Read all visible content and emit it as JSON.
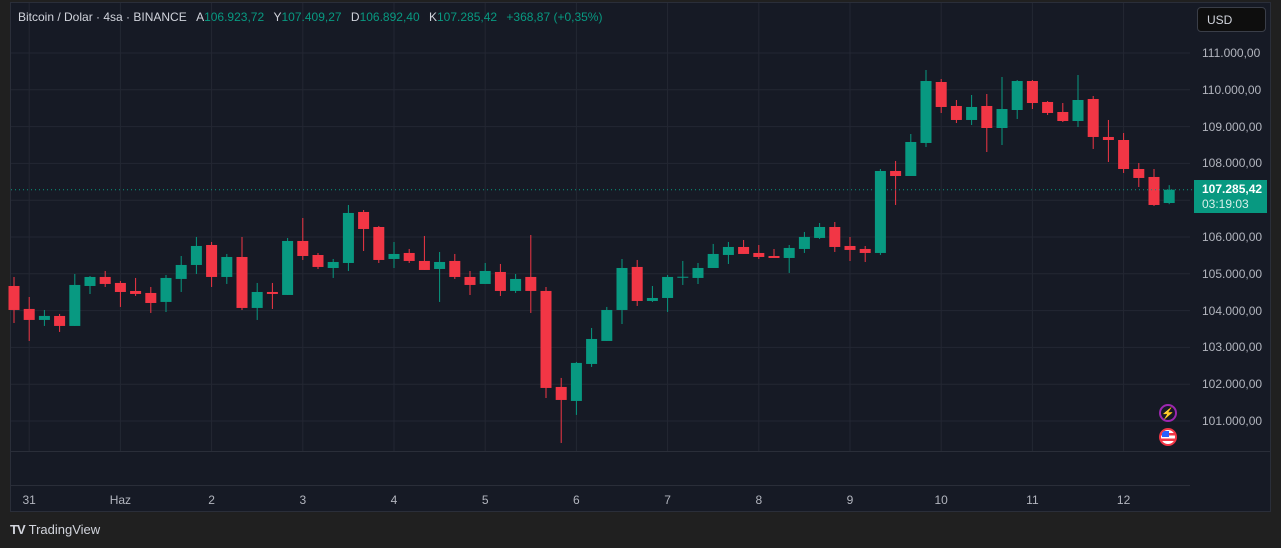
{
  "header": {
    "symbol": "Bitcoin / Dolar · 4sa · BINANCE",
    "open_label": "A",
    "open": "106.923,72",
    "high_label": "Y",
    "high": "107.409,27",
    "low_label": "D",
    "low": "106.892,40",
    "close_label": "K",
    "close": "107.285,42",
    "change": "+368,87 (+0,35%)"
  },
  "currency_button": "USD",
  "current_price": {
    "value": "107.285,42",
    "countdown": "03:19:03"
  },
  "icons": {
    "events": "lightning-icon",
    "economic": "us-flag-icon"
  },
  "branding": {
    "logo_mark": "17",
    "name": "TradingView"
  },
  "colors": {
    "up": "#089981",
    "down": "#f23645",
    "background": "#161a25",
    "grid": "#232733"
  },
  "chart_data": {
    "type": "candlestick",
    "title": "Bitcoin / Dolar · 4sa · BINANCE",
    "ylim": [
      100300,
      111400
    ],
    "yticks": [
      111000,
      110000,
      109000,
      108000,
      106000,
      105000,
      104000,
      103000,
      102000,
      101000
    ],
    "ytick_labels": [
      "111.000,00",
      "110.000,00",
      "109.000,00",
      "108.000,00",
      "106.000,00",
      "105.000,00",
      "104.000,00",
      "103.000,00",
      "102.000,00",
      "101.000,00"
    ],
    "xtick_labels": [
      "31",
      "Haz",
      "2",
      "3",
      "4",
      "5",
      "6",
      "7",
      "8",
      "9",
      "10",
      "11",
      "12"
    ],
    "xtick_index": [
      1,
      7,
      13,
      19,
      25,
      31,
      37,
      43,
      49,
      55,
      61,
      67,
      73
    ],
    "ohlc": [
      [
        104669,
        104914,
        103664,
        104017
      ],
      [
        104045,
        104370,
        103175,
        103746
      ],
      [
        103746,
        104017,
        103583,
        103855
      ],
      [
        103854,
        103909,
        103420,
        103583
      ],
      [
        103583,
        104995,
        103583,
        104697
      ],
      [
        104669,
        104941,
        104452,
        104914
      ],
      [
        104914,
        105077,
        104642,
        104724
      ],
      [
        104751,
        104805,
        104099,
        104506
      ],
      [
        104533,
        104887,
        104398,
        104452
      ],
      [
        104479,
        104642,
        103936,
        104207
      ],
      [
        104235,
        104968,
        103963,
        104887
      ],
      [
        104860,
        105484,
        104506,
        105240
      ],
      [
        105240,
        106001,
        104995,
        105756
      ],
      [
        105783,
        105865,
        104642,
        104914
      ],
      [
        104914,
        105539,
        104724,
        105457
      ],
      [
        105457,
        106001,
        104017,
        104072
      ],
      [
        104072,
        104751,
        103746,
        104506
      ],
      [
        104506,
        104751,
        104045,
        104452
      ],
      [
        104425,
        105973,
        104425,
        105892
      ],
      [
        105892,
        106517,
        105376,
        105484
      ],
      [
        105511,
        105566,
        105131,
        105186
      ],
      [
        105158,
        105403,
        104887,
        105321
      ],
      [
        105294,
        106870,
        105077,
        106653
      ],
      [
        106680,
        106734,
        105620,
        106218
      ],
      [
        106272,
        106300,
        105294,
        105376
      ],
      [
        105403,
        105865,
        105158,
        105539
      ],
      [
        105566,
        105675,
        105294,
        105349
      ],
      [
        105349,
        106028,
        105104,
        105104
      ],
      [
        105131,
        105593,
        104235,
        105321
      ],
      [
        105349,
        105539,
        104860,
        104914
      ],
      [
        104914,
        105077,
        104425,
        104697
      ],
      [
        104724,
        105294,
        104724,
        105077
      ],
      [
        105050,
        105267,
        104398,
        104534
      ],
      [
        104534,
        104995,
        104479,
        104860
      ],
      [
        104914,
        106055,
        103936,
        104534
      ],
      [
        104534,
        104642,
        101626,
        101898
      ],
      [
        101925,
        102170,
        100403,
        101572
      ],
      [
        101545,
        102605,
        101165,
        102578
      ],
      [
        102550,
        103528,
        102469,
        103229
      ],
      [
        103175,
        104099,
        103175,
        104017
      ],
      [
        104017,
        105403,
        103637,
        105158
      ],
      [
        105186,
        105376,
        104126,
        104262
      ],
      [
        104262,
        104669,
        104235,
        104343
      ],
      [
        104343,
        104968,
        103963,
        104914
      ],
      [
        104900,
        105349,
        104697,
        104920
      ],
      [
        104887,
        105294,
        104724,
        105158
      ],
      [
        105158,
        105811,
        105158,
        105539
      ],
      [
        105512,
        105865,
        105267,
        105729
      ],
      [
        105729,
        105919,
        105539,
        105539
      ],
      [
        105566,
        105783,
        105403,
        105457
      ],
      [
        105484,
        105675,
        105430,
        105430
      ],
      [
        105430,
        105783,
        105023,
        105702
      ],
      [
        105675,
        106137,
        105566,
        106001
      ],
      [
        105974,
        106381,
        105946,
        106272
      ],
      [
        106272,
        106408,
        105593,
        105729
      ],
      [
        105756,
        106001,
        105349,
        105648
      ],
      [
        105675,
        105756,
        105321,
        105566
      ],
      [
        105566,
        107848,
        105512,
        107794
      ],
      [
        107794,
        108066,
        106870,
        107658
      ],
      [
        107658,
        108799,
        107658,
        108582
      ],
      [
        108555,
        110538,
        108446,
        110239
      ],
      [
        110212,
        110294,
        109370,
        109533
      ],
      [
        109560,
        109723,
        109098,
        109180
      ],
      [
        109180,
        109859,
        109044,
        109533
      ],
      [
        109560,
        109886,
        108310,
        108962
      ],
      [
        108962,
        110348,
        108500,
        109478
      ],
      [
        109451,
        110266,
        109207,
        110239
      ],
      [
        110239,
        110266,
        109478,
        109641
      ],
      [
        109669,
        109696,
        109315,
        109370
      ],
      [
        109397,
        109641,
        109125,
        109152
      ],
      [
        109152,
        110402,
        108989,
        109723
      ],
      [
        109750,
        109832,
        108392,
        108718
      ],
      [
        108718,
        109180,
        108038,
        108636
      ],
      [
        108636,
        108826,
        107740,
        107848
      ],
      [
        107848,
        108011,
        107359,
        107604
      ],
      [
        107631,
        107848,
        106843,
        106870
      ],
      [
        106923.72,
        107409.27,
        106892.4,
        107285.42
      ]
    ],
    "last_price": 107285.42
  }
}
